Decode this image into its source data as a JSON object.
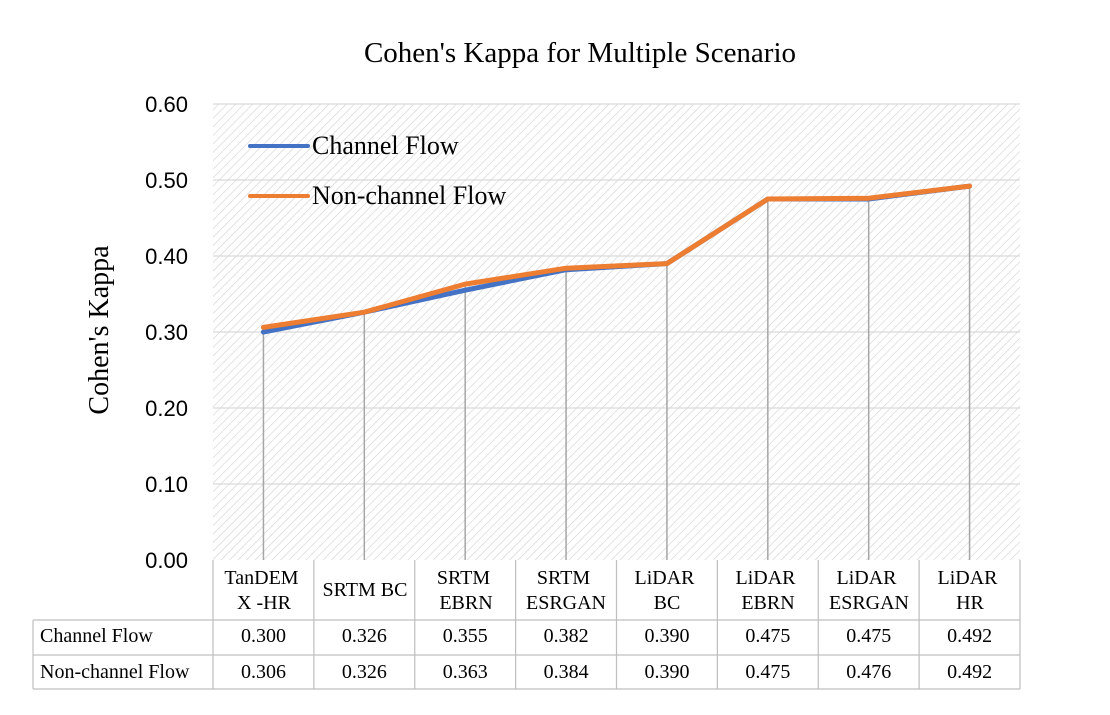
{
  "chart_data": {
    "type": "line",
    "title": "Cohen's Kappa for Multiple Scenario",
    "xlabel": "",
    "ylabel": "Cohen's Kappa",
    "ylim": [
      0,
      0.6
    ],
    "yticks": [
      "0.00",
      "0.10",
      "0.20",
      "0.30",
      "0.40",
      "0.50",
      "0.60"
    ],
    "grid": true,
    "drop_lines": true,
    "legend_position": "top-left",
    "categories": [
      [
        "TanDEM",
        "X -HR"
      ],
      [
        "SRTM BC"
      ],
      [
        "SRTM",
        "EBRN"
      ],
      [
        "SRTM",
        "ESRGAN"
      ],
      [
        "LiDAR",
        "BC"
      ],
      [
        "LiDAR",
        "EBRN"
      ],
      [
        "LiDAR",
        "ESRGAN"
      ],
      [
        "LiDAR",
        "HR"
      ]
    ],
    "series": [
      {
        "name": "Channel Flow",
        "color": "#4472C4",
        "values": [
          0.3,
          0.326,
          0.355,
          0.382,
          0.39,
          0.475,
          0.475,
          0.492
        ],
        "labels": [
          "0.300",
          "0.326",
          "0.355",
          "0.382",
          "0.390",
          "0.475",
          "0.475",
          "0.492"
        ]
      },
      {
        "name": "Non-channel Flow",
        "color": "#ED7D31",
        "values": [
          0.306,
          0.326,
          0.363,
          0.384,
          0.39,
          0.475,
          0.476,
          0.492
        ],
        "labels": [
          "0.306",
          "0.326",
          "0.363",
          "0.384",
          "0.390",
          "0.475",
          "0.476",
          "0.492"
        ]
      }
    ],
    "colors": {
      "grid": "#d9d9d9",
      "hatch": "#d0d0d0",
      "drop_line": "#a6a6a6",
      "table_border": "#bfbfbf",
      "text": "#000000"
    }
  }
}
